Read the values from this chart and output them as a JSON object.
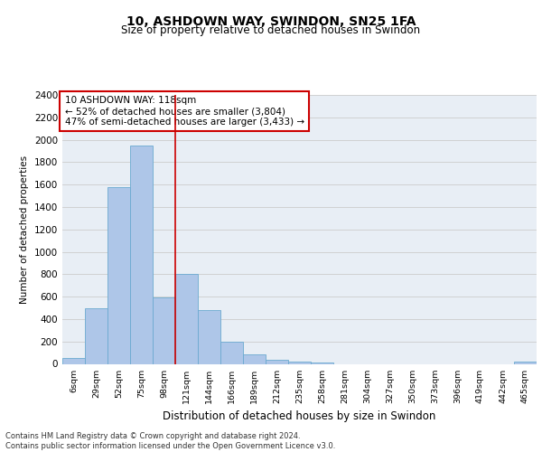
{
  "title1": "10, ASHDOWN WAY, SWINDON, SN25 1FA",
  "title2": "Size of property relative to detached houses in Swindon",
  "xlabel": "Distribution of detached houses by size in Swindon",
  "ylabel": "Number of detached properties",
  "categories": [
    "6sqm",
    "29sqm",
    "52sqm",
    "75sqm",
    "98sqm",
    "121sqm",
    "144sqm",
    "166sqm",
    "189sqm",
    "212sqm",
    "235sqm",
    "258sqm",
    "281sqm",
    "304sqm",
    "327sqm",
    "350sqm",
    "373sqm",
    "396sqm",
    "419sqm",
    "442sqm",
    "465sqm"
  ],
  "values": [
    50,
    500,
    1580,
    1950,
    590,
    800,
    480,
    200,
    85,
    35,
    20,
    15,
    0,
    0,
    0,
    0,
    0,
    0,
    0,
    0,
    20
  ],
  "bar_color": "#aec6e8",
  "bar_edge_color": "#6baad0",
  "vline_x": 4.5,
  "vline_color": "#cc0000",
  "annotation_title": "10 ASHDOWN WAY: 118sqm",
  "annotation_line1": "← 52% of detached houses are smaller (3,804)",
  "annotation_line2": "47% of semi-detached houses are larger (3,433) →",
  "annotation_box_color": "#ffffff",
  "annotation_box_edge": "#cc0000",
  "ylim": [
    0,
    2400
  ],
  "yticks": [
    0,
    200,
    400,
    600,
    800,
    1000,
    1200,
    1400,
    1600,
    1800,
    2000,
    2200,
    2400
  ],
  "grid_color": "#cccccc",
  "bg_color": "#e8eef5",
  "footer1": "Contains HM Land Registry data © Crown copyright and database right 2024.",
  "footer2": "Contains public sector information licensed under the Open Government Licence v3.0."
}
